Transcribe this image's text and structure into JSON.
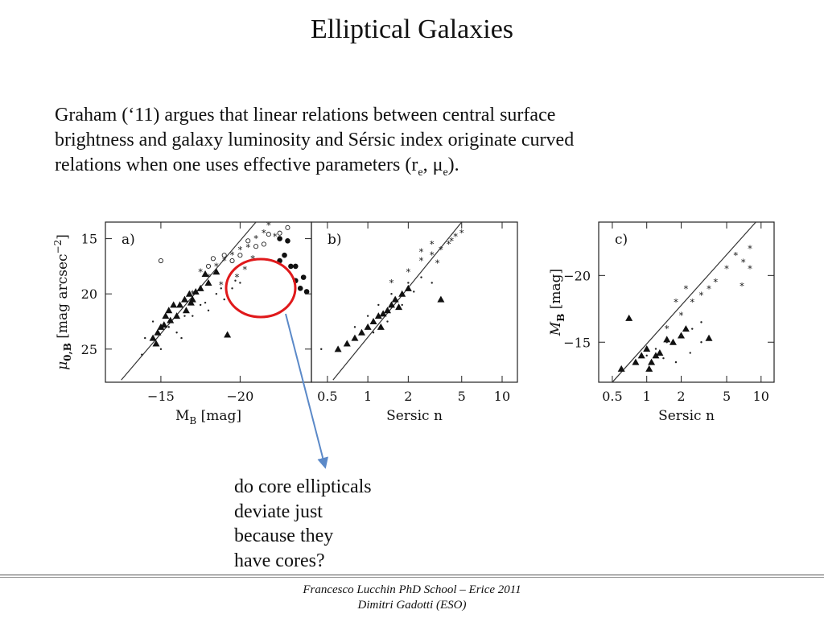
{
  "slide": {
    "title": "Elliptical Galaxies",
    "text": {
      "line1": "Graham (‘11) argues that linear relations between central surface",
      "line2": "brightness and galaxy luminosity and Sérsic index originate curved",
      "line3_prefix": "relations when one uses effective parameters (r",
      "sub_e1": "e",
      "line3_mid": ", μ",
      "sub_e2": "e",
      "line3_end": ")."
    },
    "callout": {
      "lines": [
        "do core ellipticals",
        "deviate just",
        "because they",
        "have cores?"
      ],
      "circle_color": "#e0191b",
      "arrow_color": "#5b89c8"
    },
    "footer": {
      "line1": "Francesco Lucchin PhD School – Erice 2011",
      "line2": "Dimitri Gadotti (ESO)"
    }
  },
  "chart_data": [
    {
      "type": "scatter",
      "panel_label": "a)",
      "xlabel": "M",
      "xlabel_sub": "B",
      "xlabel_unit": " [mag]",
      "ylabel": "μ",
      "ylabel_sub": "0,B",
      "ylabel_unit": " [mag arcsec",
      "ylabel_sup": "−2",
      "ylabel_close": "]",
      "xlim": [
        -11.5,
        -24.5
      ],
      "ylim": [
        28,
        13.5
      ],
      "x_ticks": [
        -15,
        -20
      ],
      "x_tick_labels": [
        "−15",
        "−20"
      ],
      "y_ticks": [
        15,
        20,
        25
      ],
      "y_tick_labels": [
        "15",
        "20",
        "25"
      ],
      "fit_line": [
        [
          -12.5,
          27.8
        ],
        [
          -21,
          13.5
        ]
      ],
      "series": [
        {
          "marker": "triangle",
          "points": [
            [
              -14.5,
              24
            ],
            [
              -14.8,
              23.5
            ],
            [
              -15,
              23
            ],
            [
              -15.3,
              22
            ],
            [
              -15.5,
              21.5
            ],
            [
              -15.8,
              21
            ],
            [
              -16,
              22
            ],
            [
              -16.2,
              21
            ],
            [
              -16.5,
              20.5
            ],
            [
              -16.8,
              20
            ],
            [
              -17,
              20.5
            ],
            [
              -17.5,
              19.5
            ],
            [
              -18,
              19
            ],
            [
              -18.5,
              18
            ],
            [
              -15.2,
              22.8
            ],
            [
              -16.6,
              21.5
            ],
            [
              -17.2,
              19.8
            ],
            [
              -14.7,
              24.5
            ],
            [
              -15.6,
              22.4
            ],
            [
              -16.9,
              20.8
            ],
            [
              -19.2,
              23.7
            ],
            [
              -17.8,
              18.2
            ]
          ]
        },
        {
          "marker": "star",
          "points": [
            [
              -17,
              20
            ],
            [
              -17.5,
              18
            ],
            [
              -18,
              18.5
            ],
            [
              -18.5,
              17.5
            ],
            [
              -19,
              17
            ],
            [
              -19.5,
              16.5
            ],
            [
              -20,
              16
            ],
            [
              -20.5,
              15.8
            ],
            [
              -21,
              15
            ],
            [
              -21.5,
              14.5
            ],
            [
              -20.8,
              16.8
            ],
            [
              -19.8,
              18.5
            ],
            [
              -18.8,
              19.2
            ],
            [
              -21.8,
              13.8
            ],
            [
              -22.2,
              14.8
            ],
            [
              -20.3,
              17.8
            ]
          ]
        },
        {
          "marker": "dot",
          "points": [
            [
              -14,
              24
            ],
            [
              -15.5,
              23
            ],
            [
              -16.5,
              22
            ],
            [
              -17.5,
              21
            ],
            [
              -18.5,
              20
            ],
            [
              -19.5,
              19.5
            ],
            [
              -14.5,
              22.5
            ],
            [
              -16,
              23.5
            ],
            [
              -17,
              22
            ],
            [
              -18,
              21.5
            ],
            [
              -19,
              20.5
            ],
            [
              -20,
              19
            ],
            [
              -15,
              25
            ],
            [
              -16.3,
              24
            ],
            [
              -17.8,
              20.8
            ],
            [
              -18.8,
              19.5
            ],
            [
              -13.8,
              25.5
            ],
            [
              -19.7,
              18.8
            ]
          ]
        },
        {
          "marker": "open-circle",
          "points": [
            [
              -15,
              17
            ],
            [
              -18,
              17.5
            ],
            [
              -19,
              16.5
            ],
            [
              -20.5,
              15.2
            ],
            [
              -21.5,
              15.5
            ],
            [
              -22.5,
              14.5
            ],
            [
              -23,
              14
            ],
            [
              -21.8,
              14.6
            ],
            [
              -20,
              16.5
            ],
            [
              -19.5,
              17
            ],
            [
              -18.3,
              16.8
            ],
            [
              -21,
              15.7
            ]
          ]
        },
        {
          "marker": "filled-circle",
          "points": [
            [
              -22.5,
              15
            ],
            [
              -23,
              15.2
            ],
            [
              -22.8,
              16.5
            ],
            [
              -23.5,
              17.5
            ],
            [
              -24,
              18.5
            ],
            [
              -23.2,
              17.5
            ],
            [
              -22.5,
              17
            ],
            [
              -23.8,
              19.5
            ],
            [
              -24.2,
              19.8
            ],
            [
              -23.5,
              18.8
            ]
          ]
        }
      ]
    },
    {
      "type": "scatter",
      "panel_label": "b)",
      "xlabel": "Sersic n",
      "x_scale": "log",
      "xlim": [
        0.38,
        13
      ],
      "ylim": [
        28,
        13.5
      ],
      "x_ticks": [
        0.5,
        1,
        2,
        5,
        10
      ],
      "x_tick_labels": [
        "0.5",
        "1",
        "2",
        "5",
        "10"
      ],
      "fit_line": [
        [
          0.55,
          27.8
        ],
        [
          5,
          13.5
        ]
      ],
      "series": [
        {
          "marker": "triangle",
          "points": [
            [
              0.6,
              25
            ],
            [
              0.8,
              24
            ],
            [
              0.9,
              23.5
            ],
            [
              1,
              23
            ],
            [
              1.1,
              22.5
            ],
            [
              1.2,
              22
            ],
            [
              1.3,
              21.8
            ],
            [
              1.4,
              21.5
            ],
            [
              1.5,
              21
            ],
            [
              1.6,
              20.5
            ],
            [
              1.8,
              20
            ],
            [
              2,
              19.5
            ],
            [
              3.5,
              20.5
            ],
            [
              0.7,
              24.5
            ],
            [
              1.25,
              23
            ],
            [
              1.7,
              21.2
            ]
          ]
        },
        {
          "marker": "star",
          "points": [
            [
              1.5,
              19
            ],
            [
              2,
              18
            ],
            [
              2.5,
              17
            ],
            [
              3,
              16.5
            ],
            [
              3.5,
              16
            ],
            [
              4,
              15.5
            ],
            [
              5,
              14.5
            ],
            [
              4.5,
              14.8
            ],
            [
              3,
              15.5
            ],
            [
              2.5,
              16.2
            ],
            [
              4.2,
              15.2
            ],
            [
              3.3,
              17.2
            ]
          ]
        },
        {
          "marker": "dot",
          "points": [
            [
              0.8,
              23
            ],
            [
              1,
              22
            ],
            [
              1.2,
              21
            ],
            [
              1.5,
              20
            ],
            [
              2,
              19
            ],
            [
              2.5,
              18.5
            ],
            [
              3,
              19
            ],
            [
              1.1,
              23.5
            ],
            [
              1.4,
              22.5
            ],
            [
              1.8,
              21
            ],
            [
              0.45,
              25
            ],
            [
              2.2,
              19.8
            ]
          ]
        }
      ]
    },
    {
      "type": "scatter",
      "panel_label": "c)",
      "xlabel": "Sersic n",
      "x_scale": "log",
      "ylabel": "M",
      "ylabel_sub": "B",
      "ylabel_unit": " [mag]",
      "xlim": [
        0.38,
        13
      ],
      "ylim": [
        -12,
        -24
      ],
      "y_ticks": [
        -20,
        -15
      ],
      "y_tick_labels": [
        "−20",
        "−15"
      ],
      "x_ticks": [
        0.5,
        1,
        2,
        5,
        10
      ],
      "x_tick_labels": [
        "0.5",
        "1",
        "2",
        "5",
        "10"
      ],
      "fit_line": [
        [
          0.5,
          -12
        ],
        [
          9,
          -24
        ]
      ],
      "series": [
        {
          "marker": "triangle",
          "points": [
            [
              0.6,
              -13
            ],
            [
              0.8,
              -13.5
            ],
            [
              0.9,
              -14
            ],
            [
              1,
              -14.5
            ],
            [
              1.1,
              -13.5
            ],
            [
              1.2,
              -14
            ],
            [
              1.3,
              -14.2
            ],
            [
              1.5,
              -15.2
            ],
            [
              1.7,
              -15
            ],
            [
              2,
              -15.5
            ],
            [
              2.2,
              -16
            ],
            [
              3.5,
              -15.3
            ],
            [
              0.7,
              -16.8
            ],
            [
              1.05,
              -13
            ]
          ]
        },
        {
          "marker": "star",
          "points": [
            [
              1.5,
              -16
            ],
            [
              2,
              -17
            ],
            [
              2.5,
              -18
            ],
            [
              3,
              -18.5
            ],
            [
              4,
              -19.5
            ],
            [
              5,
              -20.5
            ],
            [
              6,
              -21.5
            ],
            [
              7,
              -21
            ],
            [
              8,
              -22
            ],
            [
              2.2,
              -19
            ],
            [
              1.8,
              -18
            ],
            [
              3.5,
              -19
            ],
            [
              6.8,
              -19.2
            ],
            [
              8,
              -20.5
            ]
          ]
        },
        {
          "marker": "dot",
          "points": [
            [
              1,
              -14
            ],
            [
              1.2,
              -14.5
            ],
            [
              1.5,
              -15
            ],
            [
              2,
              -15.5
            ],
            [
              2.5,
              -16
            ],
            [
              3,
              -16.5
            ],
            [
              1.8,
              -13.5
            ],
            [
              2.4,
              -14.2
            ],
            [
              3,
              -15
            ],
            [
              1.4,
              -13.8
            ]
          ]
        }
      ]
    }
  ]
}
